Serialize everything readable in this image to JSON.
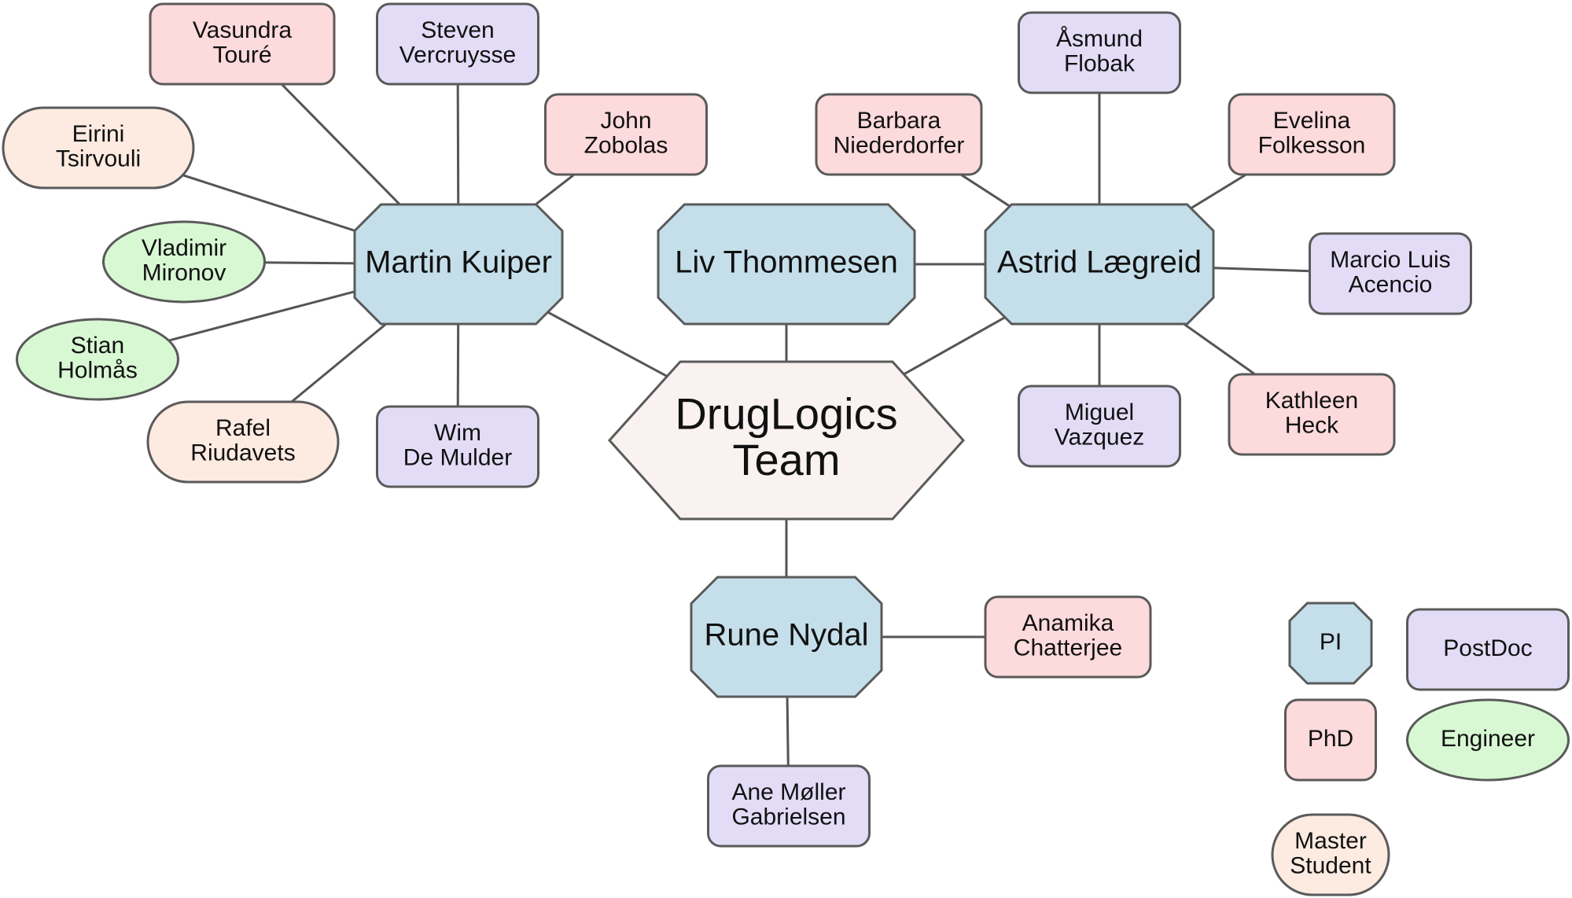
{
  "colors": {
    "edge": "#555555",
    "pi": "#c5dfea",
    "postdoc": "#e3dcf7",
    "phd": "#fddadb",
    "engineer": "#d8f8d4",
    "master": "#fdebe1",
    "team": "#faf1f1",
    "stroke": "#5a5a5a"
  },
  "team": {
    "id": "team",
    "lines": [
      "DrugLogics",
      "Team"
    ],
    "role": "team"
  },
  "pis": [
    {
      "id": "martin",
      "lines": [
        "Martin Kuiper"
      ],
      "role": "pi"
    },
    {
      "id": "liv",
      "lines": [
        "Liv Thommesen"
      ],
      "role": "pi"
    },
    {
      "id": "astrid",
      "lines": [
        "Astrid Lægreid"
      ],
      "role": "pi"
    },
    {
      "id": "rune",
      "lines": [
        "Rune Nydal"
      ],
      "role": "pi"
    }
  ],
  "members": [
    {
      "id": "vasundra",
      "lines": [
        "Vasundra",
        "Touré"
      ],
      "role": "phd"
    },
    {
      "id": "steven",
      "lines": [
        "Steven",
        "Vercruysse"
      ],
      "role": "postdoc"
    },
    {
      "id": "john",
      "lines": [
        "John",
        "Zobolas"
      ],
      "role": "phd"
    },
    {
      "id": "eirini",
      "lines": [
        "Eirini",
        "Tsirvouli"
      ],
      "role": "master"
    },
    {
      "id": "vladimir",
      "lines": [
        "Vladimir",
        "Mironov"
      ],
      "role": "engineer"
    },
    {
      "id": "stian",
      "lines": [
        "Stian",
        "Holmås"
      ],
      "role": "engineer"
    },
    {
      "id": "rafel",
      "lines": [
        "Rafel",
        "Riudavets"
      ],
      "role": "master"
    },
    {
      "id": "wim",
      "lines": [
        "Wim",
        "De Mulder"
      ],
      "role": "postdoc"
    },
    {
      "id": "asmund",
      "lines": [
        "Åsmund",
        "Flobak"
      ],
      "role": "postdoc"
    },
    {
      "id": "barbara",
      "lines": [
        "Barbara",
        "Niederdorfer"
      ],
      "role": "phd"
    },
    {
      "id": "evelina",
      "lines": [
        "Evelina",
        "Folkesson"
      ],
      "role": "phd"
    },
    {
      "id": "marcio",
      "lines": [
        "Marcio Luis",
        "Acencio"
      ],
      "role": "postdoc"
    },
    {
      "id": "miguel",
      "lines": [
        "Miguel",
        "Vazquez"
      ],
      "role": "postdoc"
    },
    {
      "id": "kathleen",
      "lines": [
        "Kathleen",
        "Heck"
      ],
      "role": "phd"
    },
    {
      "id": "anamika",
      "lines": [
        "Anamika",
        "Chatterjee"
      ],
      "role": "phd"
    },
    {
      "id": "ane",
      "lines": [
        "Ane Møller",
        "Gabrielsen"
      ],
      "role": "postdoc"
    }
  ],
  "edges": [
    [
      "team",
      "martin"
    ],
    [
      "team",
      "liv"
    ],
    [
      "team",
      "astrid"
    ],
    [
      "team",
      "rune"
    ],
    [
      "liv",
      "astrid"
    ],
    [
      "martin",
      "vasundra"
    ],
    [
      "martin",
      "steven"
    ],
    [
      "martin",
      "john"
    ],
    [
      "martin",
      "eirini"
    ],
    [
      "martin",
      "vladimir"
    ],
    [
      "martin",
      "stian"
    ],
    [
      "martin",
      "rafel"
    ],
    [
      "martin",
      "wim"
    ],
    [
      "astrid",
      "asmund"
    ],
    [
      "astrid",
      "barbara"
    ],
    [
      "astrid",
      "evelina"
    ],
    [
      "astrid",
      "marcio"
    ],
    [
      "astrid",
      "miguel"
    ],
    [
      "astrid",
      "kathleen"
    ],
    [
      "rune",
      "anamika"
    ],
    [
      "rune",
      "ane"
    ]
  ],
  "legend": [
    {
      "id": "legend-pi",
      "lines": [
        "PI"
      ],
      "role": "pi"
    },
    {
      "id": "legend-postdoc",
      "lines": [
        "PostDoc"
      ],
      "role": "postdoc"
    },
    {
      "id": "legend-phd",
      "lines": [
        "PhD"
      ],
      "role": "phd"
    },
    {
      "id": "legend-engineer",
      "lines": [
        "Engineer"
      ],
      "role": "engineer"
    },
    {
      "id": "legend-master",
      "lines": [
        "Master",
        "Student"
      ],
      "role": "master"
    }
  ]
}
